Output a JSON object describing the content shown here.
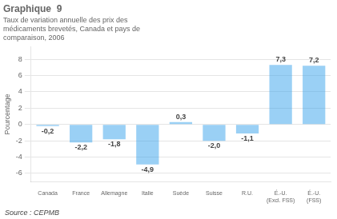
{
  "chart_data": {
    "type": "bar",
    "title": "Graphique  9",
    "subtitle": "Taux de variation annuelle des prix des\nmédicaments brevetés, Canada et pays de\ncomparaison, 2006",
    "ylabel": "Pourcentage",
    "annotations": [
      "Source : CEPMB"
    ],
    "categories": [
      "Canada",
      "France",
      "Allemagne",
      "Italie",
      "Suède",
      "Suisse",
      "R.U.",
      "É.-U.\n(Excl. FSS)",
      "É.-U.\n(FSS)"
    ],
    "values": [
      -0.2,
      -2.2,
      -1.8,
      -4.9,
      0.3,
      -2.0,
      -1.1,
      7.3,
      7.2
    ],
    "value_labels": [
      "-0,2",
      "-2,2",
      "-1,8",
      "-4,9",
      "0,3",
      "-2,0",
      "-1,1",
      "7,3",
      "7,2"
    ],
    "data_labels": true,
    "ylim": [
      -7,
      9.5
    ],
    "yticks": [
      -6,
      -4,
      -2,
      0,
      2,
      4,
      6,
      8
    ],
    "grid": true
  }
}
